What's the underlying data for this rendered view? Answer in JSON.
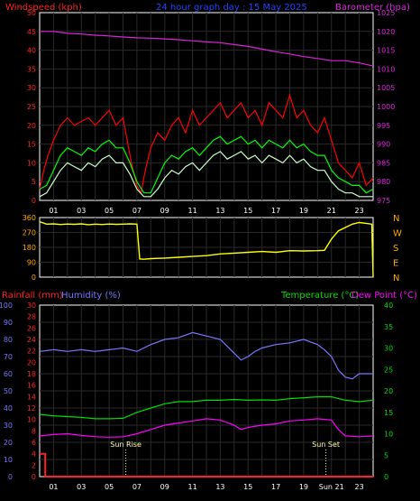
{
  "title": "24 hour graph day : 15 May 2025",
  "colors": {
    "background": "#000000",
    "frame": "#ffffff",
    "grid": "#2a2a2a",
    "windspeed_label": "#ff2222",
    "title": "#2244ff",
    "barometer_label": "#dd22dd",
    "wind_avg": "#ffffff",
    "wind_gust": "#ff0000",
    "wind_mid": "#00ff00",
    "wind_light": "#ccffcc",
    "barometer": "#dd22dd",
    "direction": "#ffff00",
    "direction_label": "#ffaa00",
    "rainfall": "#ff2222",
    "humidity": "#7777ff",
    "temperature": "#00dd00",
    "dewpoint": "#ff00ff",
    "sun_marker": "#ffffaa",
    "hour_label": "#ffffff"
  },
  "chart_data": [
    {
      "type": "line",
      "panel": "wind-barometer",
      "title": "24 hour graph day : 15 May 2025",
      "left_axis": {
        "label": "Windspeed (kph)",
        "range": [
          0,
          50
        ],
        "ticks": [
          0,
          5,
          10,
          15,
          20,
          25,
          30,
          35,
          40,
          45,
          50
        ]
      },
      "right_axis": {
        "label": "Barometer (hpa)",
        "range": [
          975,
          1025
        ],
        "ticks": [
          975,
          980,
          985,
          990,
          995,
          1000,
          1005,
          1010,
          1015,
          1020,
          1025
        ]
      },
      "x_axis": {
        "range_hours": [
          0,
          24
        ],
        "tick_labels": [
          "01",
          "03",
          "05",
          "07",
          "09",
          "11",
          "13",
          "15",
          "17",
          "19",
          "21",
          "23"
        ]
      },
      "series": [
        {
          "name": "Barometer (hpa)",
          "axis": "right",
          "color_key": "barometer",
          "x": [
            0,
            1,
            2,
            3,
            4,
            5,
            6,
            7,
            8,
            9,
            10,
            11,
            12,
            13,
            14,
            15,
            16,
            17,
            18,
            19,
            20,
            21,
            22,
            23,
            24
          ],
          "values": [
            1020,
            1020,
            1019.5,
            1019.3,
            1019,
            1018.8,
            1018.5,
            1018.3,
            1018.2,
            1018,
            1017.8,
            1017.5,
            1017.2,
            1017,
            1016.5,
            1016,
            1015.3,
            1014.6,
            1014,
            1013.3,
            1012.8,
            1012.2,
            1012.2,
            1011.6,
            1010.8
          ]
        },
        {
          "name": "Wind Gust",
          "axis": "left",
          "color_key": "wind_gust",
          "x": [
            0,
            0.3,
            0.6,
            1,
            1.5,
            2,
            2.5,
            3,
            3.5,
            4,
            4.5,
            5,
            5.5,
            6,
            6.3,
            6.6,
            7,
            7.3,
            7.6,
            8,
            8.5,
            9,
            9.5,
            10,
            10.5,
            11,
            11.5,
            12,
            12.5,
            13,
            13.5,
            14,
            14.5,
            15,
            15.5,
            16,
            16.5,
            17,
            17.5,
            18,
            18.5,
            19,
            19.5,
            20,
            20.5,
            21,
            21.5,
            22,
            22.5,
            23,
            23.5,
            24
          ],
          "values": [
            3,
            8,
            12,
            16,
            20,
            22,
            20,
            21,
            22,
            20,
            22,
            24,
            20,
            22,
            16,
            10,
            4,
            2,
            8,
            14,
            18,
            16,
            20,
            22,
            18,
            24,
            20,
            22,
            24,
            26,
            22,
            24,
            26,
            22,
            24,
            20,
            26,
            24,
            22,
            28,
            22,
            24,
            20,
            18,
            22,
            16,
            10,
            8,
            6,
            10,
            4,
            6
          ]
        },
        {
          "name": "Wind Average (mid)",
          "axis": "left",
          "color_key": "wind_mid",
          "x": [
            0,
            0.5,
            1,
            1.5,
            2,
            2.5,
            3,
            3.5,
            4,
            4.5,
            5,
            5.5,
            6,
            6.5,
            7,
            7.5,
            8,
            8.5,
            9,
            9.5,
            10,
            10.5,
            11,
            11.5,
            12,
            12.5,
            13,
            13.5,
            14,
            14.5,
            15,
            15.5,
            16,
            16.5,
            17,
            17.5,
            18,
            18.5,
            19,
            19.5,
            20,
            20.5,
            21,
            21.5,
            22,
            22.5,
            23,
            23.5,
            24
          ],
          "values": [
            3,
            4,
            8,
            12,
            14,
            13,
            12,
            14,
            13,
            15,
            16,
            14,
            14,
            10,
            5,
            2,
            2,
            6,
            10,
            12,
            11,
            13,
            14,
            12,
            14,
            16,
            17,
            15,
            16,
            17,
            15,
            16,
            14,
            16,
            15,
            14,
            16,
            14,
            15,
            13,
            12,
            12,
            8,
            6,
            5,
            4,
            4,
            2,
            3
          ]
        },
        {
          "name": "Wind Average (light)",
          "axis": "left",
          "color_key": "wind_light",
          "x": [
            0,
            0.5,
            1,
            1.5,
            2,
            2.5,
            3,
            3.5,
            4,
            4.5,
            5,
            5.5,
            6,
            6.5,
            7,
            7.5,
            8,
            8.5,
            9,
            9.5,
            10,
            10.5,
            11,
            11.5,
            12,
            12.5,
            13,
            13.5,
            14,
            14.5,
            15,
            15.5,
            16,
            16.5,
            17,
            17.5,
            18,
            18.5,
            19,
            19.5,
            20,
            20.5,
            21,
            21.5,
            22,
            22.5,
            23,
            23.5,
            24
          ],
          "values": [
            1,
            2,
            5,
            8,
            10,
            9,
            8,
            10,
            9,
            11,
            12,
            10,
            10,
            7,
            3,
            1,
            1,
            3,
            6,
            8,
            7,
            9,
            10,
            8,
            10,
            12,
            13,
            11,
            12,
            13,
            11,
            12,
            10,
            12,
            11,
            10,
            12,
            10,
            11,
            9,
            8,
            8,
            5,
            3,
            2,
            2,
            1,
            1,
            1
          ]
        }
      ]
    },
    {
      "type": "line",
      "panel": "wind-direction",
      "left_axis": {
        "range": [
          0,
          360
        ],
        "ticks": [
          0,
          90,
          180,
          270,
          360
        ]
      },
      "compass_labels": [
        "N",
        "W",
        "S",
        "E",
        "N"
      ],
      "series": [
        {
          "name": "Wind Direction",
          "color_key": "direction",
          "x": [
            0,
            0.5,
            1,
            1.5,
            2,
            2.5,
            3,
            3.5,
            4,
            4.5,
            5,
            5.5,
            6,
            6.5,
            7,
            7.2,
            7.5,
            8,
            9,
            10,
            11,
            12,
            13,
            14,
            15,
            16,
            17,
            18,
            19,
            20,
            20.5,
            21,
            21.5,
            22,
            22.5,
            23,
            23.5,
            23.9,
            24
          ],
          "values": [
            335,
            320,
            322,
            318,
            321,
            319,
            322,
            317,
            320,
            318,
            321,
            319,
            320,
            322,
            320,
            110,
            108,
            112,
            115,
            120,
            125,
            130,
            140,
            145,
            150,
            155,
            150,
            160,
            158,
            160,
            162,
            230,
            280,
            300,
            320,
            330,
            325,
            320,
            0
          ]
        }
      ]
    },
    {
      "type": "line",
      "panel": "temp-humidity-rain",
      "axes": {
        "humidity": {
          "label": "Humidity (%)",
          "range": [
            0,
            100
          ],
          "ticks": [
            0,
            10,
            20,
            30,
            40,
            50,
            60,
            70,
            80,
            90,
            100
          ]
        },
        "rainfall": {
          "label": "Rainfall (mm)",
          "range": [
            0,
            30
          ],
          "ticks": [
            0,
            2,
            4,
            6,
            8,
            10,
            12,
            14,
            16,
            18,
            20,
            22,
            24,
            26,
            28,
            30
          ]
        },
        "temperature": {
          "label": "Temperature (°C)",
          "range": [
            0,
            40
          ],
          "ticks": [
            0,
            5,
            10,
            15,
            20,
            25,
            30,
            35,
            40
          ]
        },
        "dewpoint": {
          "label": "Dew Point (°C)"
        }
      },
      "x_axis": {
        "range_hours": [
          0,
          24
        ],
        "tick_labels": [
          "01",
          "03",
          "05",
          "07",
          "09",
          "11",
          "13",
          "15",
          "17",
          "19",
          "Sun 21",
          "23"
        ]
      },
      "annotations": [
        {
          "label": "Sun Rise",
          "hour": 6.2
        },
        {
          "label": "Sun Set",
          "hour": 20.6
        }
      ],
      "series": [
        {
          "name": "Humidity",
          "axis": "humidity",
          "color_key": "humidity",
          "x": [
            0,
            1,
            2,
            3,
            4,
            5,
            6,
            7,
            8,
            9,
            10,
            11,
            12,
            13,
            13.5,
            14,
            14.5,
            15,
            15.5,
            16,
            17,
            18,
            19,
            20,
            20.5,
            21,
            21.5,
            22,
            22.5,
            23,
            24
          ],
          "values": [
            73,
            74,
            73,
            74,
            73,
            74,
            75,
            73,
            77,
            80,
            81,
            84,
            82,
            80,
            76,
            72,
            68,
            70,
            73,
            75,
            77,
            78,
            80,
            77,
            74,
            70,
            62,
            58,
            57,
            60,
            60
          ]
        },
        {
          "name": "Temperature (°C)",
          "axis": "temperature",
          "color_key": "temperature",
          "x": [
            0,
            1,
            2,
            3,
            4,
            5,
            6,
            7,
            8,
            9,
            10,
            11,
            12,
            13,
            14,
            15,
            16,
            17,
            18,
            19,
            20,
            21,
            22,
            23,
            24
          ],
          "values": [
            14.5,
            14.2,
            14,
            13.8,
            13.5,
            13.5,
            13.6,
            15,
            16,
            17,
            17.5,
            17.5,
            17.8,
            17.8,
            18,
            17.8,
            17.9,
            17.8,
            18.2,
            18.4,
            18.6,
            18.6,
            17.8,
            17.5,
            17.8
          ]
        },
        {
          "name": "Dew Point (°C)",
          "axis": "temperature",
          "color_key": "dewpoint",
          "x": [
            0,
            1,
            2,
            3,
            4,
            5,
            6,
            7,
            8,
            9,
            10,
            11,
            12,
            13,
            14,
            14.5,
            15,
            16,
            17,
            18,
            19,
            20,
            21,
            21.5,
            22,
            23,
            24
          ],
          "values": [
            9.5,
            9.8,
            10,
            9.6,
            9.3,
            9.2,
            9.3,
            10,
            11,
            12,
            12.5,
            13,
            13.5,
            13.2,
            12,
            11,
            11.5,
            12,
            12.3,
            13,
            13.2,
            13.5,
            13.2,
            11,
            9.5,
            9.3,
            9.5
          ]
        },
        {
          "name": "Rainfall",
          "axis": "rainfall",
          "color_key": "rainfall",
          "x": [
            0,
            0.4,
            0.4,
            24
          ],
          "values": [
            4,
            4,
            0,
            0
          ]
        }
      ]
    }
  ]
}
